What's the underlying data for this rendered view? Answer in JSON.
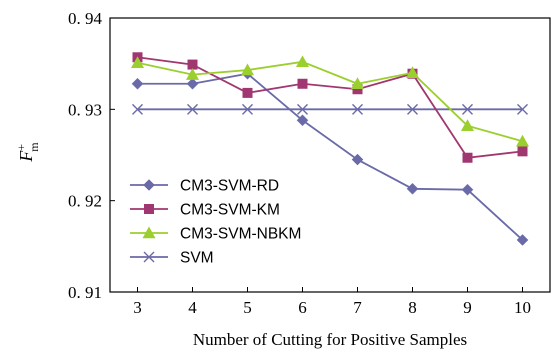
{
  "chart_data": {
    "type": "line",
    "title": "",
    "xlabel": "Number of Cutting for Positive Samples",
    "ylabel": {
      "base": "F",
      "sup": "+",
      "sub": "m"
    },
    "x": [
      3,
      4,
      5,
      6,
      7,
      8,
      9,
      10
    ],
    "x_tick_labels": [
      "3",
      "4",
      "5",
      "6",
      "7",
      "8",
      "9",
      "10"
    ],
    "xlim": [
      2.5,
      10.5
    ],
    "ylim": [
      0.91,
      0.94
    ],
    "y_ticks": [
      0.91,
      0.92,
      0.93,
      0.94
    ],
    "y_tick_labels": [
      "0. 91",
      "0. 92",
      "0. 93",
      "0. 94"
    ],
    "grid": false,
    "legend_position": "lower-left",
    "series": [
      {
        "name": "CM3-SVM-RD",
        "color": "#6a6aa8",
        "marker": "diamond",
        "values": [
          0.9328,
          0.9328,
          0.9339,
          0.9288,
          0.9245,
          0.9213,
          0.9212,
          0.9157
        ]
      },
      {
        "name": "CM3-SVM-KM",
        "color": "#a03770",
        "marker": "square",
        "values": [
          0.9357,
          0.9349,
          0.9318,
          0.9328,
          0.9322,
          0.9339,
          0.9247,
          0.9254
        ]
      },
      {
        "name": "CM3-SVM-NBKM",
        "color": "#9bcf2e",
        "marker": "triangle",
        "values": [
          0.9351,
          0.9338,
          0.9343,
          0.9352,
          0.9328,
          0.934,
          0.9282,
          0.9265
        ]
      },
      {
        "name": "SVM",
        "color": "#6a6aa8",
        "marker": "x",
        "values": [
          0.93,
          0.93,
          0.93,
          0.93,
          0.93,
          0.93,
          0.93,
          0.93
        ]
      }
    ]
  }
}
